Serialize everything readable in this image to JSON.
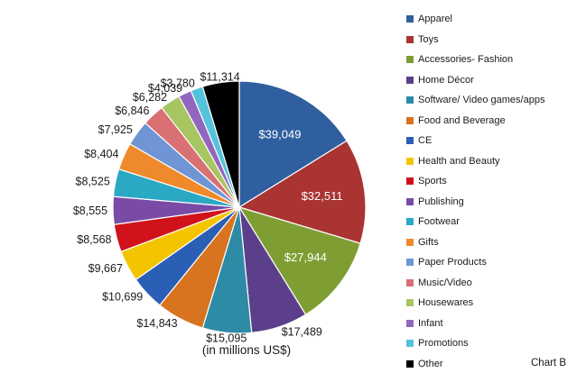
{
  "chart_data": {
    "type": "pie",
    "unit_note": "(in millions US$)",
    "chart_tag": "Chart B",
    "legend_position": "right",
    "slices": [
      {
        "name": "Apparel",
        "value": 39049,
        "label": "$39,049",
        "color": "#2F5F9E"
      },
      {
        "name": "Toys",
        "value": 32511,
        "label": "$32,511",
        "color": "#A93431"
      },
      {
        "name": "Accessories- Fashion",
        "value": 27944,
        "label": "$27,944",
        "color": "#7E9E34"
      },
      {
        "name": "Home Décor",
        "value": 17489,
        "label": "$17,489",
        "color": "#5C3F8A"
      },
      {
        "name": "Software/ Video games/apps",
        "value": 15095,
        "label": "$15,095",
        "color": "#2E8BA6"
      },
      {
        "name": "Food and Beverage",
        "value": 14843,
        "label": "$14,843",
        "color": "#D8731F"
      },
      {
        "name": "CE",
        "value": 10699,
        "label": "$10,699",
        "color": "#2B5FB5"
      },
      {
        "name": "Health and Beauty",
        "value": 9667,
        "label": "$9,667",
        "color": "#F5C400"
      },
      {
        "name": "Sports",
        "value": 8568,
        "label": "$8,568",
        "color": "#D0121A"
      },
      {
        "name": "Publishing",
        "value": 8555,
        "label": "$8,555",
        "color": "#7A4BA6"
      },
      {
        "name": "Footwear",
        "value": 8525,
        "label": "$8,525",
        "color": "#2BA8C4"
      },
      {
        "name": "Gifts",
        "value": 8404,
        "label": "$8,404",
        "color": "#EF8A2C"
      },
      {
        "name": "Paper Products",
        "value": 7925,
        "label": "$7,925",
        "color": "#6F95D4"
      },
      {
        "name": "Music/Video",
        "value": 6846,
        "label": "$6,846",
        "color": "#D97073"
      },
      {
        "name": "Housewares",
        "value": 6282,
        "label": "$6,282",
        "color": "#A7C560"
      },
      {
        "name": "Infant",
        "value": 4039,
        "label": "$4,039",
        "color": "#9266BF"
      },
      {
        "name": "Promotions",
        "value": 3780,
        "label": "$3,780",
        "color": "#55C3DB"
      },
      {
        "name": "Other",
        "value": 11314,
        "label": "$11,314",
        "color": "#000000"
      }
    ]
  }
}
